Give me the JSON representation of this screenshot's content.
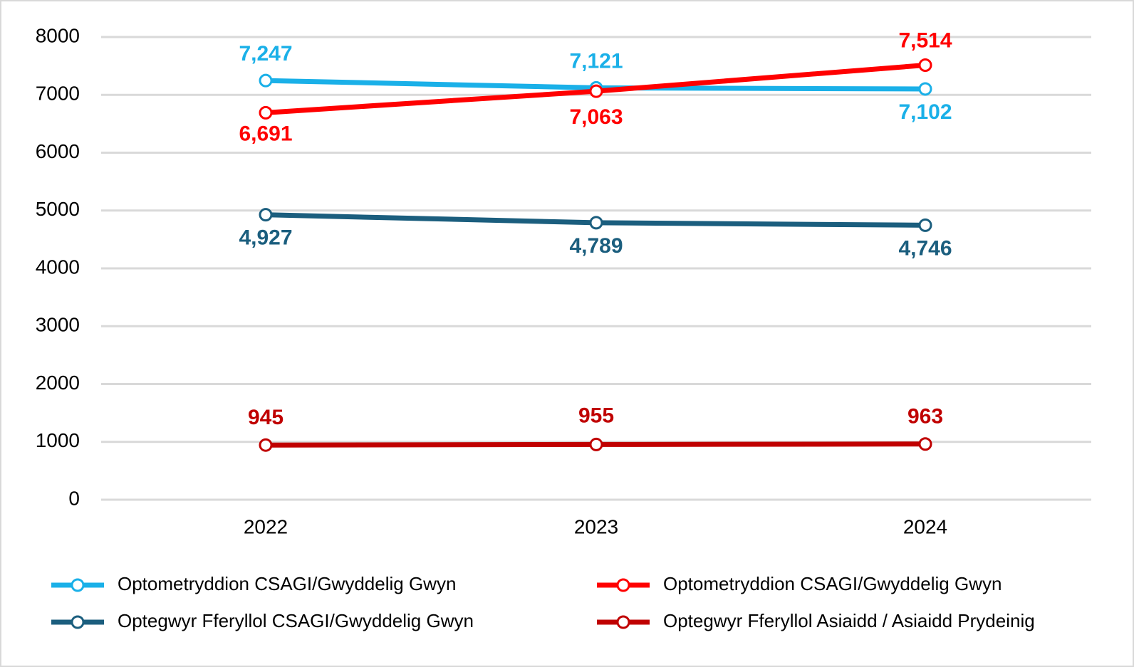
{
  "chart_data": {
    "type": "line",
    "categories": [
      "2022",
      "2023",
      "2024"
    ],
    "series": [
      {
        "name": "Optometryddion CSAGI/Gwyddelig Gwyn",
        "color": "#1ab0e8",
        "values": [
          7247,
          7121,
          7102
        ],
        "value_labels": [
          "7,247",
          "7,121",
          "7,102"
        ]
      },
      {
        "name": "Optometryddion CSAGI/Gwyddelig Gwyn",
        "color": "#ff0000",
        "values": [
          6691,
          7063,
          7514
        ],
        "value_labels": [
          "6,691",
          "7,063",
          "7,514"
        ]
      },
      {
        "name": "Optegwyr Fferyllol CSAGI/Gwyddelig Gwyn",
        "color": "#1b5e7e",
        "values": [
          4927,
          4789,
          4746
        ],
        "value_labels": [
          "4,927",
          "4,789",
          "4,746"
        ]
      },
      {
        "name": "Optegwyr Fferyllol Asiaidd / Asiaidd Prydeinig",
        "color": "#c00000",
        "values": [
          945,
          955,
          963
        ]
      }
    ],
    "ylim": [
      0,
      8000
    ],
    "yticks": [
      0,
      1000,
      2000,
      3000,
      4000,
      5000,
      6000,
      7000,
      8000
    ],
    "grid": true
  }
}
